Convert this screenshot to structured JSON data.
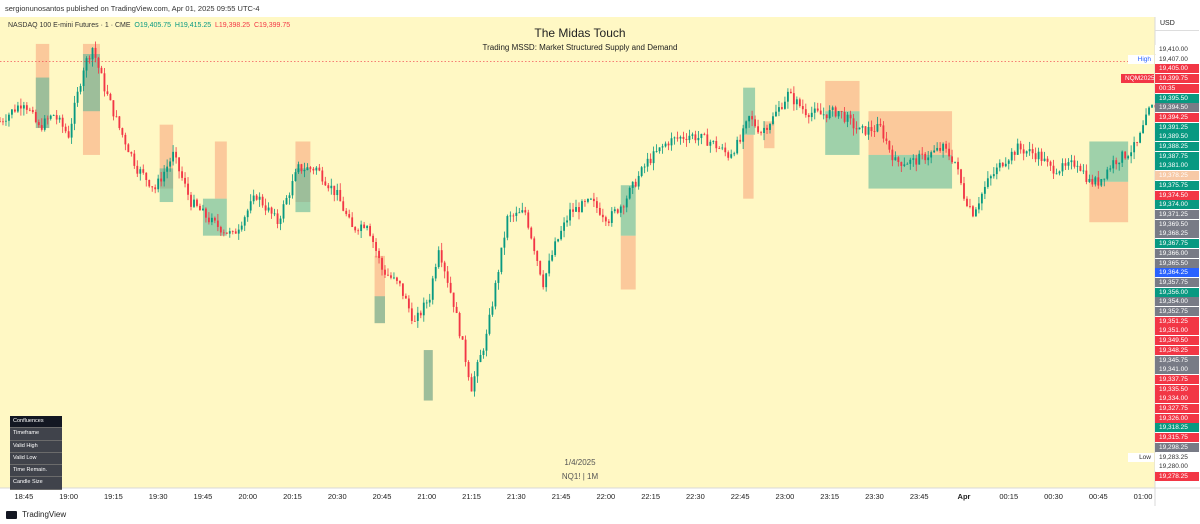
{
  "header": {
    "publisher_line": "sergionunosantos published on TradingView.com, Apr 01, 2025 09:55 UTC-4"
  },
  "legend": {
    "symbol": "NASDAQ 100 E-mini Futures · 1 · CME",
    "open": "O19,405.75",
    "high": "H19,415.25",
    "low": "L19,398.25",
    "close": "C19,399.75"
  },
  "indicator": {
    "title": "The Midas Touch",
    "subtitle": "Trading MSSD: Market Structured Supply and Demand"
  },
  "watermark": {
    "date": "1/4/2025",
    "symbol_tf": "NQ1! | 1M"
  },
  "currency": "USD",
  "confluences": {
    "title": "Confluences",
    "rows": [
      "Timeframe",
      "Valid High",
      "Valid Low",
      "Time Remain.",
      "Candle Size"
    ]
  },
  "footer": {
    "brand": "TradingView"
  },
  "colors": {
    "background": "#fff8c4",
    "up": "#089981",
    "down": "#f23645",
    "supply_zone": "#f9b98e",
    "demand_zone": "#5fb79a",
    "current_price_line": "#f23645"
  },
  "chart_data": {
    "type": "candlestick",
    "y_range": [
      19273,
      19413
    ],
    "x_ticks": [
      "18:45",
      "19:00",
      "19:15",
      "19:30",
      "19:45",
      "20:00",
      "20:15",
      "20:30",
      "20:45",
      "21:00",
      "21:15",
      "21:30",
      "21:45",
      "22:00",
      "22:15",
      "22:30",
      "22:45",
      "23:00",
      "23:15",
      "23:30",
      "23:45",
      "Apr",
      "00:15",
      "00:30",
      "00:45",
      "01:00"
    ],
    "x_tick_minutes": [
      0,
      15,
      30,
      45,
      60,
      75,
      90,
      105,
      120,
      135,
      150,
      165,
      180,
      195,
      210,
      225,
      240,
      255,
      270,
      285,
      300,
      315,
      330,
      345,
      360,
      375
    ],
    "x_range_minutes": [
      -8,
      379
    ],
    "price_path": [
      [
        -8,
        19382
      ],
      [
        -4,
        19385
      ],
      [
        0,
        19388
      ],
      [
        5,
        19380
      ],
      [
        10,
        19384
      ],
      [
        15,
        19378
      ],
      [
        20,
        19398
      ],
      [
        23,
        19404
      ],
      [
        27,
        19392
      ],
      [
        32,
        19380
      ],
      [
        38,
        19368
      ],
      [
        44,
        19362
      ],
      [
        50,
        19372
      ],
      [
        56,
        19358
      ],
      [
        63,
        19352
      ],
      [
        70,
        19348
      ],
      [
        78,
        19360
      ],
      [
        85,
        19352
      ],
      [
        92,
        19368
      ],
      [
        98,
        19368
      ],
      [
        105,
        19360
      ],
      [
        110,
        19350
      ],
      [
        115,
        19352
      ],
      [
        120,
        19338
      ],
      [
        126,
        19333
      ],
      [
        131,
        19322
      ],
      [
        136,
        19330
      ],
      [
        139,
        19345
      ],
      [
        144,
        19328
      ],
      [
        150,
        19303
      ],
      [
        155,
        19318
      ],
      [
        162,
        19353
      ],
      [
        168,
        19355
      ],
      [
        174,
        19334
      ],
      [
        178,
        19345
      ],
      [
        183,
        19355
      ],
      [
        190,
        19358
      ],
      [
        196,
        19353
      ],
      [
        201,
        19358
      ],
      [
        209,
        19370
      ],
      [
        216,
        19376
      ],
      [
        223,
        19378
      ],
      [
        230,
        19376
      ],
      [
        236,
        19372
      ],
      [
        240,
        19376
      ],
      [
        243,
        19383
      ],
      [
        247,
        19379
      ],
      [
        251,
        19383
      ],
      [
        256,
        19390
      ],
      [
        262,
        19385
      ],
      [
        267,
        19384
      ],
      [
        273,
        19385
      ],
      [
        280,
        19379
      ],
      [
        287,
        19380
      ],
      [
        292,
        19370
      ],
      [
        298,
        19370
      ],
      [
        303,
        19372
      ],
      [
        308,
        19374
      ],
      [
        312,
        19370
      ],
      [
        315,
        19360
      ],
      [
        318,
        19355
      ],
      [
        323,
        19364
      ],
      [
        328,
        19370
      ],
      [
        333,
        19374
      ],
      [
        340,
        19372
      ],
      [
        344,
        19368
      ],
      [
        349,
        19368
      ],
      [
        353,
        19370
      ],
      [
        357,
        19364
      ],
      [
        360,
        19364
      ],
      [
        365,
        19370
      ],
      [
        369,
        19372
      ],
      [
        373,
        19375
      ],
      [
        377,
        19385
      ],
      [
        379,
        19387
      ]
    ],
    "zones": [
      {
        "kind": "supply",
        "t1": 19.8,
        "t2": 25.5,
        "p1": 19372,
        "p2": 19405
      },
      {
        "kind": "demand",
        "t1": 19.8,
        "t2": 25.5,
        "p1": 19385,
        "p2": 19402
      },
      {
        "kind": "supply",
        "t1": 4,
        "t2": 8.5,
        "p1": 19380,
        "p2": 19405
      },
      {
        "kind": "demand",
        "t1": 4,
        "t2": 8.5,
        "p1": 19380,
        "p2": 19395
      },
      {
        "kind": "supply",
        "t1": 45.5,
        "t2": 50,
        "p1": 19362,
        "p2": 19381
      },
      {
        "kind": "demand",
        "t1": 45.5,
        "t2": 50,
        "p1": 19358,
        "p2": 19368
      },
      {
        "kind": "supply",
        "t1": 64,
        "t2": 68,
        "p1": 19359,
        "p2": 19376
      },
      {
        "kind": "demand",
        "t1": 60,
        "t2": 68,
        "p1": 19348,
        "p2": 19359
      },
      {
        "kind": "supply",
        "t1": 91,
        "t2": 96,
        "p1": 19358,
        "p2": 19376
      },
      {
        "kind": "demand",
        "t1": 91,
        "t2": 96,
        "p1": 19355,
        "p2": 19368
      },
      {
        "kind": "supply",
        "t1": 117.5,
        "t2": 121,
        "p1": 19322,
        "p2": 19342
      },
      {
        "kind": "demand",
        "t1": 117.5,
        "t2": 121,
        "p1": 19322,
        "p2": 19330
      },
      {
        "kind": "supply",
        "t1": 134,
        "t2": 137,
        "p1": 19299,
        "p2": 19314
      },
      {
        "kind": "demand",
        "t1": 134,
        "t2": 137,
        "p1": 19299,
        "p2": 19314
      },
      {
        "kind": "supply",
        "t1": 200,
        "t2": 205,
        "p1": 19332,
        "p2": 19348
      },
      {
        "kind": "demand",
        "t1": 200,
        "t2": 205,
        "p1": 19348,
        "p2": 19363
      },
      {
        "kind": "supply",
        "t1": 241,
        "t2": 244.5,
        "p1": 19359,
        "p2": 19378
      },
      {
        "kind": "demand",
        "t1": 241,
        "t2": 245,
        "p1": 19378,
        "p2": 19392
      },
      {
        "kind": "supply",
        "t1": 248,
        "t2": 251.5,
        "p1": 19374,
        "p2": 19382
      },
      {
        "kind": "supply",
        "t1": 268.5,
        "t2": 280,
        "p1": 19385,
        "p2": 19394
      },
      {
        "kind": "demand",
        "t1": 268.5,
        "t2": 280,
        "p1": 19372,
        "p2": 19385
      },
      {
        "kind": "supply",
        "t1": 283,
        "t2": 311,
        "p1": 19372,
        "p2": 19385
      },
      {
        "kind": "demand",
        "t1": 283,
        "t2": 311,
        "p1": 19362,
        "p2": 19372
      },
      {
        "kind": "demand",
        "t1": 357,
        "t2": 370,
        "p1": 19364,
        "p2": 19376
      },
      {
        "kind": "supply",
        "t1": 357,
        "t2": 370,
        "p1": 19352,
        "p2": 19364
      }
    ],
    "price_labels": [
      {
        "text": "19,410.00",
        "color": "#ffffff",
        "fg": "#333333"
      },
      {
        "text": "19,407.00",
        "color": "#ffffff",
        "fg": "#333333",
        "tag": "High"
      },
      {
        "text": "19,405.00",
        "color": "#f23645",
        "fg": "#ffffff"
      },
      {
        "text": "19,399.75",
        "color": "#f23645",
        "fg": "#ffffff",
        "tag": "NQM2025"
      },
      {
        "text": "00:35",
        "color": "#f23645",
        "fg": "#ffffff"
      },
      {
        "text": "19,395.50",
        "color": "#089981",
        "fg": "#ffffff"
      },
      {
        "text": "19,394.50",
        "color": "#787b86",
        "fg": "#ffffff"
      },
      {
        "text": "19,394.25",
        "color": "#f23645",
        "fg": "#ffffff"
      },
      {
        "text": "19,391.25",
        "color": "#089981",
        "fg": "#ffffff"
      },
      {
        "text": "19,389.50",
        "color": "#089981",
        "fg": "#ffffff"
      },
      {
        "text": "19,388.25",
        "color": "#089981",
        "fg": "#ffffff"
      },
      {
        "text": "19,387.75",
        "color": "#089981",
        "fg": "#ffffff"
      },
      {
        "text": "19,381.00",
        "color": "#089981",
        "fg": "#ffffff"
      },
      {
        "text": "19,378.25",
        "color": "#f7c9a6",
        "fg": "#ffffff"
      },
      {
        "text": "19,375.75",
        "color": "#089981",
        "fg": "#ffffff"
      },
      {
        "text": "19,374.50",
        "color": "#f23645",
        "fg": "#ffffff"
      },
      {
        "text": "19,374.00",
        "color": "#089981",
        "fg": "#ffffff"
      },
      {
        "text": "19,371.25",
        "color": "#787b86",
        "fg": "#ffffff"
      },
      {
        "text": "19,369.50",
        "color": "#787b86",
        "fg": "#ffffff"
      },
      {
        "text": "19,368.25",
        "color": "#787b86",
        "fg": "#ffffff"
      },
      {
        "text": "19,367.75",
        "color": "#089981",
        "fg": "#ffffff"
      },
      {
        "text": "19,366.00",
        "color": "#787b86",
        "fg": "#ffffff"
      },
      {
        "text": "19,365.50",
        "color": "#787b86",
        "fg": "#ffffff"
      },
      {
        "text": "19,364.25",
        "color": "#2962ff",
        "fg": "#ffffff"
      },
      {
        "text": "19,357.75",
        "color": "#787b86",
        "fg": "#ffffff"
      },
      {
        "text": "19,356.00",
        "color": "#089981",
        "fg": "#ffffff"
      },
      {
        "text": "19,354.00",
        "color": "#787b86",
        "fg": "#ffffff"
      },
      {
        "text": "19,352.75",
        "color": "#787b86",
        "fg": "#ffffff"
      },
      {
        "text": "19,351.25",
        "color": "#f23645",
        "fg": "#ffffff"
      },
      {
        "text": "19,351.00",
        "color": "#f23645",
        "fg": "#ffffff"
      },
      {
        "text": "19,349.50",
        "color": "#f23645",
        "fg": "#ffffff"
      },
      {
        "text": "19,348.25",
        "color": "#f23645",
        "fg": "#ffffff"
      },
      {
        "text": "19,345.75",
        "color": "#787b86",
        "fg": "#ffffff"
      },
      {
        "text": "19,341.00",
        "color": "#787b86",
        "fg": "#ffffff"
      },
      {
        "text": "19,337.75",
        "color": "#f23645",
        "fg": "#ffffff"
      },
      {
        "text": "19,335.50",
        "color": "#f23645",
        "fg": "#ffffff"
      },
      {
        "text": "19,334.00",
        "color": "#f23645",
        "fg": "#ffffff"
      },
      {
        "text": "19,327.75",
        "color": "#f23645",
        "fg": "#ffffff"
      },
      {
        "text": "19,326.00",
        "color": "#f23645",
        "fg": "#ffffff"
      },
      {
        "text": "19,318.25",
        "color": "#089981",
        "fg": "#ffffff"
      },
      {
        "text": "19,315.75",
        "color": "#f23645",
        "fg": "#ffffff"
      },
      {
        "text": "19,298.25",
        "color": "#787b86",
        "fg": "#ffffff"
      },
      {
        "text": "19,283.25",
        "color": "#ffffff",
        "fg": "#333333",
        "tag": "Low"
      },
      {
        "text": "19,280.00",
        "color": "#ffffff",
        "fg": "#333333"
      },
      {
        "text": "19,278.25",
        "color": "#f23645",
        "fg": "#ffffff"
      }
    ],
    "current_price": 19399.75
  }
}
